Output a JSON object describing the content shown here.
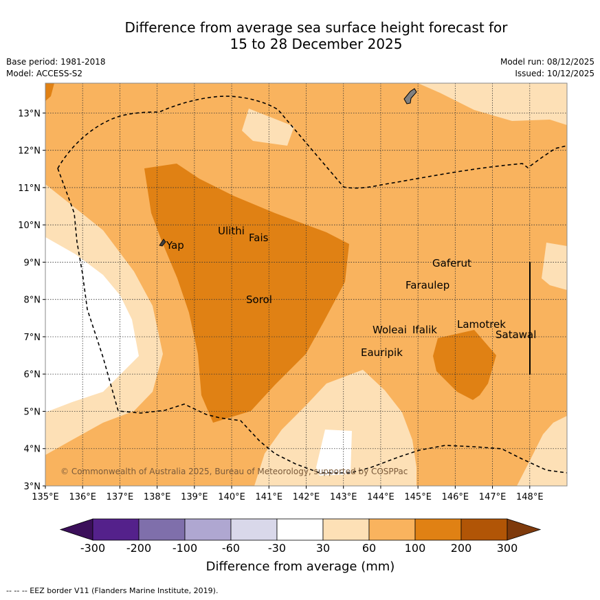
{
  "title_line1": "Difference from average sea surface height forecast for",
  "title_line2": "15 to 28 December 2025",
  "base_period": "Base period: 1981-2018",
  "model": "Model: ACCESS-S2",
  "model_run": "Model run: 08/12/2025",
  "issued": "Issued: 10/12/2025",
  "map": {
    "lon_range": [
      135,
      149
    ],
    "lat_range": [
      3,
      13.8
    ],
    "lon_ticks": [
      "135°E",
      "136°E",
      "137°E",
      "138°E",
      "139°E",
      "140°E",
      "141°E",
      "142°E",
      "143°E",
      "144°E",
      "145°E",
      "146°E",
      "147°E",
      "148°E"
    ],
    "lat_ticks": [
      "3°N",
      "4°N",
      "5°N",
      "6°N",
      "7°N",
      "8°N",
      "9°N",
      "10°N",
      "11°N",
      "12°N",
      "13°N"
    ],
    "places": [
      "Yap",
      "Ulithi",
      "Fais",
      "Sorol",
      "Gaferut",
      "Faraulep",
      "Woleai",
      "Ifalik",
      "Lamotrek",
      "Satawal",
      "Eauripik"
    ],
    "copyright": "© Commonwealth of Australia 2025, Bureau of Meteorology, supported by COSPPac"
  },
  "colorbar": {
    "labels": [
      "-300",
      "-200",
      "-100",
      "-60",
      "-30",
      "30",
      "60",
      "100",
      "200",
      "300"
    ],
    "colors": [
      "#3b0f5a",
      "#54218b",
      "#7f6fab",
      "#afa7d1",
      "#d9d8ea",
      "#ffffff",
      "#fde0b6",
      "#f9b35e",
      "#e08114",
      "#b15506",
      "#7e3a0c"
    ],
    "caption": "Difference from average (mm)"
  },
  "footer": "-- -- -- EEZ border V11 (Flanders Marine Institute, 2019)."
}
